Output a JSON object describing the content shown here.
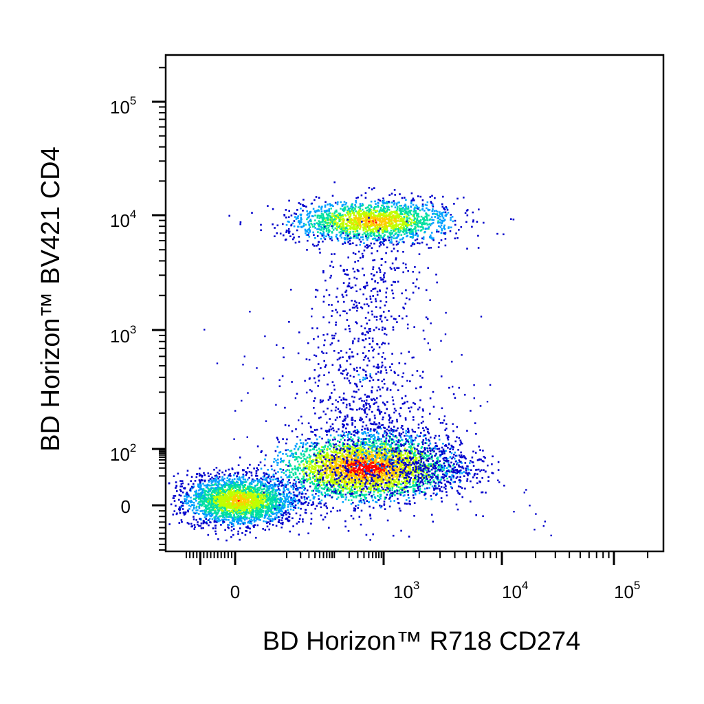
{
  "chart_data": {
    "type": "scatter",
    "style": "flow-cytometry density dot plot (blue to red pseudocolor)",
    "xlabel": "BD Horizon™ R718 CD274",
    "ylabel": "BD Horizon™ BV421 CD4",
    "x_scale": "biexponential",
    "y_scale": "biexponential",
    "xlim": [
      -150,
      100000
    ],
    "ylim": [
      -40,
      250000
    ],
    "grid": false,
    "x_ticks": [
      {
        "base": "0",
        "exp": ""
      },
      {
        "base": "10",
        "exp": "3"
      },
      {
        "base": "10",
        "exp": "4"
      },
      {
        "base": "10",
        "exp": "5"
      }
    ],
    "y_ticks": [
      {
        "base": "0",
        "exp": ""
      },
      {
        "base": "10",
        "exp": "2"
      },
      {
        "base": "10",
        "exp": "3"
      },
      {
        "base": "10",
        "exp": "4"
      },
      {
        "base": "10",
        "exp": "5"
      }
    ],
    "density_colors": [
      "#0000cc",
      "#00a0ff",
      "#00e0a0",
      "#c0ff00",
      "#ffcc00",
      "#ff0000"
    ],
    "populations": [
      {
        "center_x": 0,
        "center_y": 0,
        "spread": "wide",
        "peak_density": "high"
      },
      {
        "center_x": 300,
        "center_y": 20,
        "spread": "wide",
        "peak_density": "high"
      },
      {
        "center_x": 300,
        "center_y": 9000,
        "spread": "medium",
        "peak_density": "medium"
      }
    ]
  }
}
